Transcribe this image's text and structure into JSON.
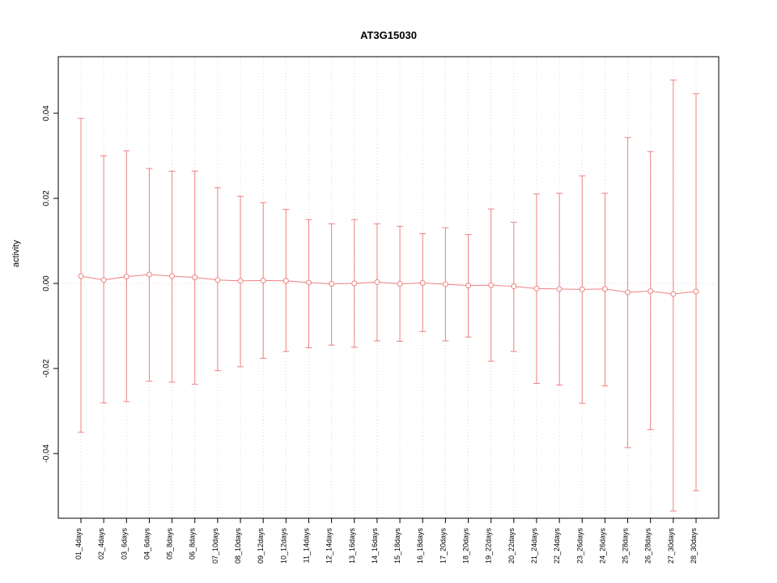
{
  "chart_data": {
    "type": "line",
    "title": "AT3G15030",
    "xlabel": "",
    "ylabel": "activity",
    "legend": "none",
    "grid": "dotted vertical gridline at each category; dotted horizontal line at y=0",
    "point_style": "open circles with error bars (whiskers with caps)",
    "accent_color": "#f08080",
    "grid_color": "#d8d8d8",
    "axis_color": "#000000",
    "ylim": [
      -0.0552,
      0.0533
    ],
    "yticks": [
      -0.04,
      -0.02,
      0.0,
      0.02,
      0.04
    ],
    "ytick_labels": [
      "-0.04",
      "-0.02",
      "0.00",
      "0.02",
      "0.04"
    ],
    "categories": [
      "01_4days",
      "02_4days",
      "03_6days",
      "04_6days",
      "05_8days",
      "06_8days",
      "07_10days",
      "08_10days",
      "09_12days",
      "10_12days",
      "11_14days",
      "12_14days",
      "13_16days",
      "14_16days",
      "15_18days",
      "16_18days",
      "17_20days",
      "18_20days",
      "19_22days",
      "20_22days",
      "21_24days",
      "22_24days",
      "23_26days",
      "24_26days",
      "25_28days",
      "26_28days",
      "27_30days",
      "28_30days"
    ],
    "series": [
      {
        "name": "activity",
        "means": [
          0.0017,
          0.0008,
          0.0016,
          0.0021,
          0.0017,
          0.0014,
          0.0008,
          0.0006,
          0.0007,
          0.0006,
          0.0002,
          -0.0001,
          0.0,
          0.0003,
          -0.0001,
          0.0001,
          -0.0002,
          -0.0005,
          -0.0004,
          -0.0007,
          -0.0012,
          -0.0013,
          -0.0014,
          -0.0013,
          -0.0021,
          -0.0018,
          -0.0025,
          -0.0019
        ],
        "upper": [
          0.0388,
          0.03,
          0.0312,
          0.027,
          0.0264,
          0.0264,
          0.0225,
          0.0205,
          0.019,
          0.0174,
          0.015,
          0.014,
          0.015,
          0.014,
          0.0134,
          0.0117,
          0.0131,
          0.0115,
          0.0175,
          0.0144,
          0.021,
          0.0212,
          0.0253,
          0.0212,
          0.0343,
          0.031,
          0.0478,
          0.0446
        ],
        "lower": [
          -0.035,
          -0.0281,
          -0.0278,
          -0.023,
          -0.0232,
          -0.0237,
          -0.0205,
          -0.0196,
          -0.0176,
          -0.016,
          -0.0151,
          -0.0145,
          -0.015,
          -0.0135,
          -0.0136,
          -0.0113,
          -0.0135,
          -0.0126,
          -0.0183,
          -0.016,
          -0.0235,
          -0.0239,
          -0.0282,
          -0.0241,
          -0.0386,
          -0.0344,
          -0.0535,
          -0.0487
        ]
      }
    ]
  }
}
